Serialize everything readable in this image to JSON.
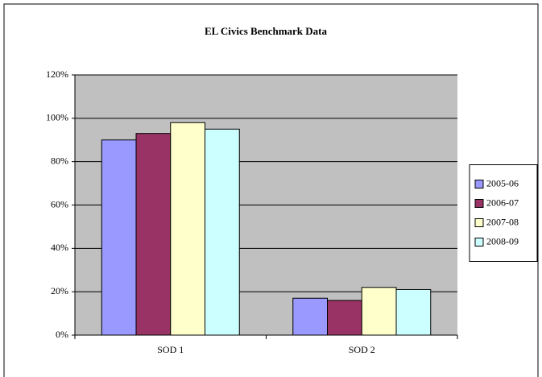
{
  "chart_data": {
    "type": "bar",
    "title": "EL Civics Benchmark Data",
    "categories": [
      "SOD 1",
      "SOD 2"
    ],
    "series": [
      {
        "name": "2005-06",
        "color": "#9999ff",
        "values": [
          90,
          17
        ]
      },
      {
        "name": "2006-07",
        "color": "#993366",
        "values": [
          93,
          16
        ]
      },
      {
        "name": "2007-08",
        "color": "#ffffcc",
        "values": [
          98,
          22
        ]
      },
      {
        "name": "2008-09",
        "color": "#ccffff",
        "values": [
          95,
          21
        ]
      }
    ],
    "ylim": [
      0,
      120
    ],
    "yticks": [
      {
        "value": 0,
        "label": "0%"
      },
      {
        "value": 20,
        "label": "20%"
      },
      {
        "value": 40,
        "label": "40%"
      },
      {
        "value": 60,
        "label": "60%"
      },
      {
        "value": 80,
        "label": "80%"
      },
      {
        "value": 100,
        "label": "100%"
      },
      {
        "value": 120,
        "label": "120%"
      }
    ],
    "grid": true,
    "legend": "right"
  }
}
